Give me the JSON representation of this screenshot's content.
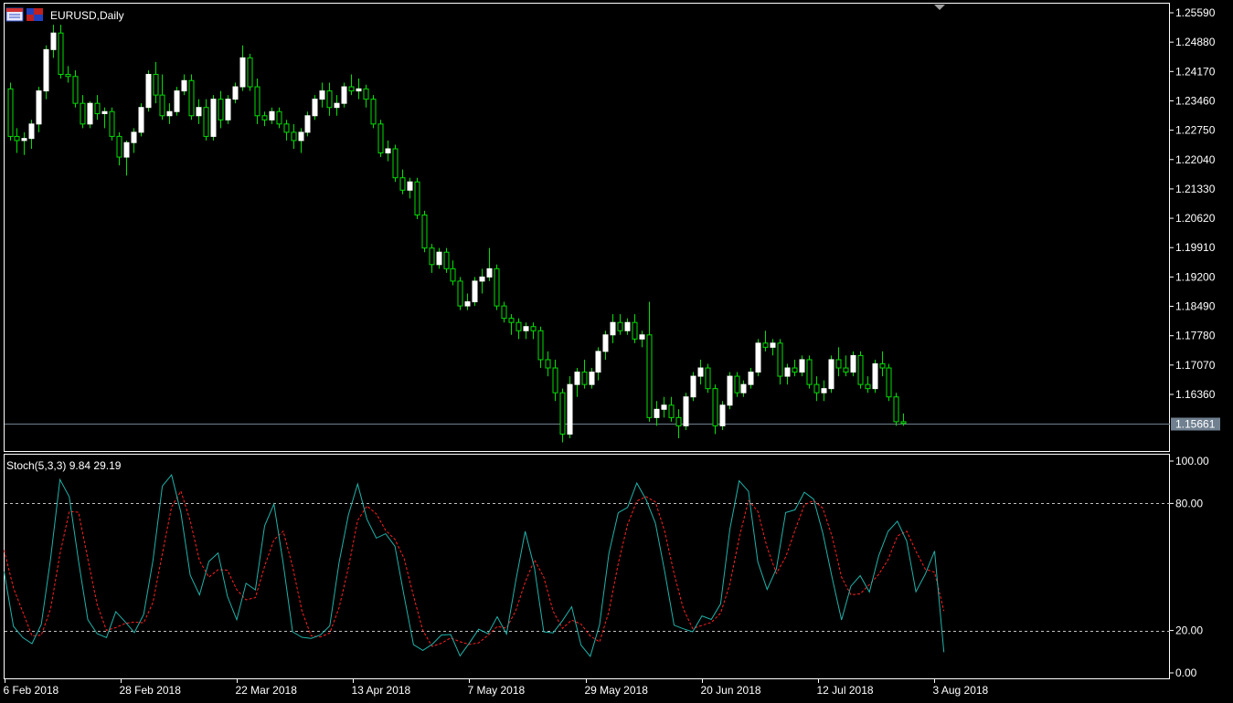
{
  "window": {
    "symbol_title": "EURUSD,Daily",
    "icons": [
      "chart-window-icon",
      "flag-icon"
    ]
  },
  "colors": {
    "background": "#000000",
    "frame": "#ffffff",
    "bull_body": "#ffffff",
    "bear_body": "#000000",
    "wick": "#00e000",
    "stoch_main": "#20b2aa",
    "stoch_signal": "#ff2020",
    "level_line": "#c0c0c0",
    "bid_line": "#708090",
    "bid_label_bg": "#708090"
  },
  "chart_data": [
    {
      "type": "candlestick",
      "title": "EURUSD,Daily",
      "y_ticks": [
        "1.25590",
        "1.24880",
        "1.24170",
        "1.23460",
        "1.22750",
        "1.22040",
        "1.21330",
        "1.20620",
        "1.19910",
        "1.19200",
        "1.18490",
        "1.17780",
        "1.17070",
        "1.16360"
      ],
      "ylim": [
        1.151,
        1.2559
      ],
      "current_price": 1.15661,
      "current_price_label": "1.15661",
      "x_labels": [
        "6 Feb 2018",
        "28 Feb 2018",
        "22 Mar 2018",
        "13 Apr 2018",
        "7 May 2018",
        "29 May 2018",
        "20 Jun 2018",
        "12 Jul 2018",
        "3 Aug 2018"
      ],
      "x_label_index": [
        0,
        16,
        32,
        48,
        64,
        80,
        96,
        112,
        128
      ],
      "ohlc": [
        [
          1.2375,
          1.239,
          1.225,
          1.226
        ],
        [
          1.226,
          1.228,
          1.222,
          1.225
        ],
        [
          1.225,
          1.227,
          1.2215,
          1.2255
        ],
        [
          1.2255,
          1.23,
          1.223,
          1.229
        ],
        [
          1.229,
          1.238,
          1.227,
          1.237
        ],
        [
          1.237,
          1.248,
          1.235,
          1.247
        ],
        [
          1.247,
          1.253,
          1.245,
          1.251
        ],
        [
          1.251,
          1.253,
          1.24,
          1.241
        ],
        [
          1.241,
          1.243,
          1.239,
          1.2405
        ],
        [
          1.2405,
          1.242,
          1.233,
          1.234
        ],
        [
          1.234,
          1.236,
          1.228,
          1.229
        ],
        [
          1.229,
          1.2345,
          1.228,
          1.234
        ],
        [
          1.234,
          1.236,
          1.23,
          1.2315
        ],
        [
          1.2315,
          1.233,
          1.228,
          1.232
        ],
        [
          1.232,
          1.233,
          1.225,
          1.226
        ],
        [
          1.226,
          1.227,
          1.219,
          1.221
        ],
        [
          1.221,
          1.225,
          1.2165,
          1.2245
        ],
        [
          1.2245,
          1.228,
          1.222,
          1.227
        ],
        [
          1.227,
          1.234,
          1.226,
          1.233
        ],
        [
          1.233,
          1.242,
          1.232,
          1.241
        ],
        [
          1.241,
          1.244,
          1.234,
          1.236
        ],
        [
          1.236,
          1.241,
          1.23,
          1.231
        ],
        [
          1.231,
          1.234,
          1.229,
          1.232
        ],
        [
          1.232,
          1.238,
          1.231,
          1.237
        ],
        [
          1.237,
          1.241,
          1.236,
          1.2395
        ],
        [
          1.2395,
          1.241,
          1.23,
          1.231
        ],
        [
          1.231,
          1.235,
          1.229,
          1.233
        ],
        [
          1.233,
          1.235,
          1.225,
          1.226
        ],
        [
          1.226,
          1.236,
          1.225,
          1.235
        ],
        [
          1.235,
          1.237,
          1.228,
          1.23
        ],
        [
          1.23,
          1.236,
          1.229,
          1.235
        ],
        [
          1.235,
          1.239,
          1.234,
          1.238
        ],
        [
          1.238,
          1.248,
          1.237,
          1.245
        ],
        [
          1.245,
          1.246,
          1.237,
          1.238
        ],
        [
          1.238,
          1.24,
          1.229,
          1.231
        ],
        [
          1.231,
          1.232,
          1.2285,
          1.23
        ],
        [
          1.23,
          1.233,
          1.229,
          1.232
        ],
        [
          1.232,
          1.233,
          1.228,
          1.229
        ],
        [
          1.229,
          1.23,
          1.225,
          1.227
        ],
        [
          1.227,
          1.229,
          1.223,
          1.225
        ],
        [
          1.225,
          1.228,
          1.222,
          1.227
        ],
        [
          1.227,
          1.232,
          1.226,
          1.231
        ],
        [
          1.231,
          1.236,
          1.23,
          1.235
        ],
        [
          1.235,
          1.239,
          1.233,
          1.237
        ],
        [
          1.237,
          1.239,
          1.231,
          1.233
        ],
        [
          1.233,
          1.236,
          1.231,
          1.234
        ],
        [
          1.234,
          1.239,
          1.233,
          1.238
        ],
        [
          1.238,
          1.241,
          1.236,
          1.237
        ],
        [
          1.237,
          1.24,
          1.235,
          1.2375
        ],
        [
          1.2375,
          1.2385,
          1.233,
          1.235
        ],
        [
          1.235,
          1.236,
          1.228,
          1.229
        ],
        [
          1.229,
          1.23,
          1.221,
          1.222
        ],
        [
          1.222,
          1.225,
          1.22,
          1.223
        ],
        [
          1.223,
          1.224,
          1.215,
          1.216
        ],
        [
          1.216,
          1.218,
          1.212,
          1.213
        ],
        [
          1.213,
          1.216,
          1.211,
          1.215
        ],
        [
          1.215,
          1.216,
          1.206,
          1.207
        ],
        [
          1.207,
          1.208,
          1.198,
          1.199
        ],
        [
          1.199,
          1.2,
          1.193,
          1.195
        ],
        [
          1.195,
          1.199,
          1.194,
          1.198
        ],
        [
          1.198,
          1.199,
          1.193,
          1.194
        ],
        [
          1.194,
          1.196,
          1.19,
          1.191
        ],
        [
          1.191,
          1.192,
          1.184,
          1.185
        ],
        [
          1.185,
          1.188,
          1.184,
          1.186
        ],
        [
          1.186,
          1.192,
          1.185,
          1.191
        ],
        [
          1.191,
          1.194,
          1.188,
          1.192
        ],
        [
          1.192,
          1.199,
          1.191,
          1.194
        ],
        [
          1.194,
          1.195,
          1.184,
          1.185
        ],
        [
          1.185,
          1.186,
          1.181,
          1.182
        ],
        [
          1.182,
          1.183,
          1.178,
          1.181
        ],
        [
          1.181,
          1.182,
          1.177,
          1.179
        ],
        [
          1.179,
          1.181,
          1.177,
          1.18
        ],
        [
          1.18,
          1.181,
          1.177,
          1.179
        ],
        [
          1.179,
          1.18,
          1.17,
          1.172
        ],
        [
          1.172,
          1.174,
          1.168,
          1.17
        ],
        [
          1.17,
          1.172,
          1.162,
          1.164
        ],
        [
          1.164,
          1.165,
          1.152,
          1.154
        ],
        [
          1.154,
          1.168,
          1.153,
          1.166
        ],
        [
          1.166,
          1.17,
          1.163,
          1.169
        ],
        [
          1.169,
          1.172,
          1.165,
          1.166
        ],
        [
          1.166,
          1.17,
          1.165,
          1.169
        ],
        [
          1.169,
          1.175,
          1.167,
          1.174
        ],
        [
          1.174,
          1.179,
          1.172,
          1.178
        ],
        [
          1.178,
          1.183,
          1.176,
          1.181
        ],
        [
          1.181,
          1.183,
          1.178,
          1.179
        ],
        [
          1.179,
          1.182,
          1.178,
          1.181
        ],
        [
          1.181,
          1.183,
          1.176,
          1.177
        ],
        [
          1.177,
          1.179,
          1.175,
          1.178
        ],
        [
          1.178,
          1.186,
          1.157,
          1.158
        ],
        [
          1.158,
          1.162,
          1.156,
          1.16
        ],
        [
          1.16,
          1.163,
          1.158,
          1.161
        ],
        [
          1.161,
          1.163,
          1.157,
          1.158
        ],
        [
          1.158,
          1.16,
          1.153,
          1.156
        ],
        [
          1.156,
          1.164,
          1.155,
          1.163
        ],
        [
          1.163,
          1.169,
          1.162,
          1.168
        ],
        [
          1.168,
          1.172,
          1.166,
          1.17
        ],
        [
          1.17,
          1.171,
          1.164,
          1.165
        ],
        [
          1.165,
          1.166,
          1.154,
          1.156
        ],
        [
          1.156,
          1.162,
          1.155,
          1.161
        ],
        [
          1.161,
          1.169,
          1.16,
          1.168
        ],
        [
          1.168,
          1.169,
          1.163,
          1.164
        ],
        [
          1.164,
          1.167,
          1.163,
          1.166
        ],
        [
          1.166,
          1.17,
          1.165,
          1.169
        ],
        [
          1.169,
          1.177,
          1.168,
          1.176
        ],
        [
          1.176,
          1.179,
          1.174,
          1.175
        ],
        [
          1.175,
          1.177,
          1.173,
          1.176
        ],
        [
          1.176,
          1.177,
          1.166,
          1.168
        ],
        [
          1.168,
          1.171,
          1.166,
          1.17
        ],
        [
          1.17,
          1.172,
          1.168,
          1.169
        ],
        [
          1.169,
          1.173,
          1.168,
          1.172
        ],
        [
          1.172,
          1.173,
          1.165,
          1.166
        ],
        [
          1.166,
          1.168,
          1.162,
          1.164
        ],
        [
          1.164,
          1.167,
          1.162,
          1.165
        ],
        [
          1.165,
          1.173,
          1.164,
          1.172
        ],
        [
          1.172,
          1.175,
          1.168,
          1.17
        ],
        [
          1.17,
          1.173,
          1.168,
          1.169
        ],
        [
          1.169,
          1.174,
          1.168,
          1.173
        ],
        [
          1.173,
          1.174,
          1.165,
          1.166
        ],
        [
          1.166,
          1.168,
          1.164,
          1.165
        ],
        [
          1.165,
          1.172,
          1.164,
          1.171
        ],
        [
          1.171,
          1.174,
          1.168,
          1.17
        ],
        [
          1.17,
          1.171,
          1.162,
          1.163
        ],
        [
          1.163,
          1.164,
          1.156,
          1.157
        ],
        [
          1.157,
          1.159,
          1.156,
          1.1566
        ]
      ]
    },
    {
      "type": "line",
      "title": "Stoch(5,3,3) 9.84 29.19",
      "ylim": [
        0,
        100
      ],
      "y_ticks": [
        "100.00",
        "80.00",
        "20.00",
        "0.00"
      ],
      "levels": [
        80,
        20
      ],
      "series": [
        {
          "values": [
            47.8,
            22.0,
            16.7,
            13.8,
            22.9,
            54.1,
            91.3,
            83.1,
            52.9,
            25.1,
            18.5,
            16.7,
            28.9,
            24.2,
            19.0,
            27.6,
            53.2,
            88.2,
            93.5,
            75.7,
            46.1,
            36.8,
            52.6,
            56.6,
            36.2,
            25.1,
            42.3,
            39.2,
            69.4,
            79.7,
            51.6,
            19.4,
            16.8,
            16.3,
            17.9,
            22.2,
            52.2,
            74.6,
            89.2,
            72.5,
            63.6,
            65.7,
            59.8,
            36.1,
            13.3,
            10.6,
            13.5,
            17.9,
            18.1,
            8.0,
            14.1,
            20.6,
            18.5,
            26.5,
            18.3,
            43.7,
            66.8,
            49.4,
            19.4,
            18.9,
            24.6,
            31.2,
            13.1,
            7.8,
            22.8,
            56.4,
            75.6,
            78.1,
            89.6,
            81.8,
            70.6,
            47.7,
            22.5,
            20.8,
            19.4,
            26.9,
            25.2,
            32.6,
            67.7,
            90.7,
            85.7,
            52.4,
            39.4,
            49.1,
            75.7,
            77.0,
            85.3,
            82.0,
            65.8,
            44.8,
            25.0,
            40.9,
            45.9,
            38.2,
            55.3,
            66.8,
            71.6,
            62.2,
            38.3,
            46.6,
            57.5,
            9.8
          ]
        },
        {
          "values": [
            57.9,
            40.1,
            28.8,
            17.5,
            17.8,
            30.3,
            56.1,
            76.2,
            75.8,
            53.7,
            32.2,
            20.1,
            21.4,
            23.3,
            24.0,
            23.6,
            33.3,
            56.3,
            78.3,
            85.8,
            71.8,
            52.9,
            45.2,
            48.7,
            48.5,
            39.3,
            34.5,
            35.5,
            50.3,
            62.8,
            66.9,
            50.2,
            29.3,
            17.5,
            17.0,
            18.8,
            30.8,
            49.7,
            72.0,
            78.8,
            75.1,
            67.3,
            63.0,
            53.9,
            36.4,
            20.0,
            12.5,
            14.0,
            16.5,
            14.7,
            13.4,
            14.2,
            17.7,
            21.9,
            21.1,
            29.5,
            42.9,
            53.3,
            45.2,
            29.2,
            21.0,
            24.9,
            23.0,
            17.4,
            14.6,
            29.0,
            51.6,
            70.0,
            81.1,
            83.2,
            80.7,
            66.7,
            46.9,
            30.3,
            20.9,
            22.4,
            23.8,
            28.2,
            41.8,
            63.7,
            81.4,
            76.3,
            59.2,
            47.0,
            54.7,
            67.3,
            79.3,
            81.4,
            77.7,
            64.2,
            45.2,
            36.9,
            37.3,
            41.7,
            46.5,
            53.4,
            64.6,
            66.9,
            57.4,
            49.0,
            47.5,
            29.2
          ]
        }
      ]
    }
  ]
}
